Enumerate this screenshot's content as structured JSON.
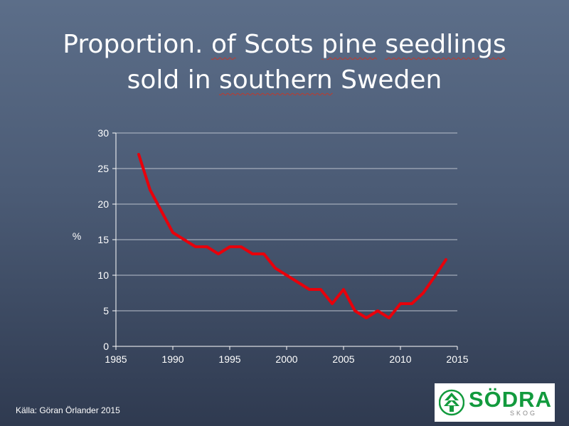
{
  "slide": {
    "title_parts": [
      {
        "text": "Proportion. ",
        "squiggle": false
      },
      {
        "text": "of",
        "squiggle": true
      },
      {
        "text": " Scots ",
        "squiggle": false
      },
      {
        "text": "pine",
        "squiggle": true
      },
      {
        "text": " ",
        "squiggle": false
      },
      {
        "text": "seedlings",
        "squiggle": true
      },
      {
        "text": "\nsold in ",
        "squiggle": false
      },
      {
        "text": "southern",
        "squiggle": true
      },
      {
        "text": " Sweden",
        "squiggle": false
      }
    ],
    "source": "Källa: Göran Örlander 2015"
  },
  "logo": {
    "name": "SÖDRA",
    "sub": "SKOG",
    "color": "#129a3d"
  },
  "chart_data": {
    "type": "line",
    "title": "Proportion. of Scots pine seedlings sold in southern Sweden",
    "xlabel": "",
    "ylabel": "%",
    "xlim": [
      1985,
      2015
    ],
    "ylim": [
      0,
      30
    ],
    "xticks": [
      1985,
      1990,
      1995,
      2000,
      2005,
      2010,
      2015
    ],
    "yticks": [
      0,
      5,
      10,
      15,
      20,
      25,
      30
    ],
    "grid": "horizontal",
    "series": [
      {
        "color": "#e8000b",
        "x": [
          1987,
          1988,
          1989,
          1990,
          1991,
          1992,
          1993,
          1994,
          1995,
          1996,
          1997,
          1998,
          1999,
          2000,
          2001,
          2002,
          2003,
          2004,
          2005,
          2006,
          2007,
          2008,
          2009,
          2010,
          2011,
          2012,
          2013,
          2014
        ],
        "y": [
          27,
          22,
          19,
          16,
          15,
          14,
          14,
          13,
          14,
          14,
          13,
          13,
          11,
          10,
          9,
          8,
          8,
          6,
          8,
          5,
          4,
          5,
          4,
          6,
          6,
          7.5,
          9.8,
          12.2
        ]
      }
    ]
  }
}
